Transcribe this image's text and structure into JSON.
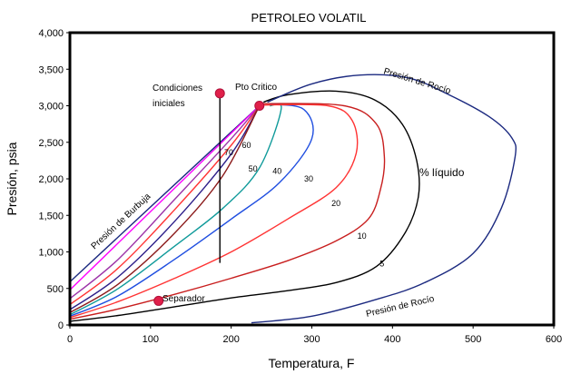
{
  "chart_data": {
    "type": "line",
    "title": "PETROLEO VOLATIL",
    "xlabel": "Temperatura, F",
    "ylabel": "Presión, psia",
    "xlim": [
      0,
      600
    ],
    "ylim": [
      0,
      4000
    ],
    "x_ticks": [
      0,
      100,
      200,
      300,
      400,
      500,
      600
    ],
    "y_ticks": [
      0,
      500,
      1000,
      1500,
      2000,
      2500,
      3000,
      3500,
      4000
    ],
    "x_tick_labels": [
      "0",
      "100",
      "200",
      "300",
      "400",
      "500",
      "600"
    ],
    "y_tick_labels": [
      "0",
      "500",
      "1,000",
      "1,500",
      "2,000",
      "2,500",
      "3,000",
      "3,500",
      "4,000"
    ],
    "grid": false,
    "series": [
      {
        "color": "#1c2a80",
        "x": [
          0,
          235
        ],
        "y": [
          590,
          3000
        ]
      },
      {
        "color": "#ff00ff",
        "x": [
          0,
          235
        ],
        "y": [
          480,
          3000
        ]
      },
      {
        "color": "#9c33a8",
        "x": [
          0,
          60,
          130,
          200,
          235
        ],
        "y": [
          360,
          900,
          1720,
          2550,
          3000
        ]
      },
      {
        "color": "#ff3333",
        "x": [
          0,
          60,
          130,
          200,
          235
        ],
        "y": [
          280,
          780,
          1580,
          2460,
          3000
        ]
      },
      {
        "color": "#2d1f8a",
        "x": [
          0,
          60,
          130,
          200,
          235
        ],
        "y": [
          210,
          660,
          1420,
          2340,
          3000
        ]
      },
      {
        "color": "#8b1a1a",
        "x": [
          0,
          60,
          130,
          190,
          235
        ],
        "y": [
          170,
          560,
          1260,
          2050,
          3000
        ]
      },
      {
        "color": "#0f9a9a",
        "x": [
          0,
          60,
          130,
          190,
          235,
          262,
          248
        ],
        "y": [
          140,
          500,
          1080,
          1600,
          2150,
          2950,
          3000
        ]
      },
      {
        "color": "#1f4ee0",
        "x": [
          0,
          60,
          130,
          200,
          260,
          300,
          290,
          248
        ],
        "y": [
          120,
          400,
          900,
          1450,
          1950,
          2550,
          2950,
          3020
        ]
      },
      {
        "color": "#ff3333",
        "x": [
          0,
          60,
          130,
          200,
          270,
          330,
          355,
          350,
          320,
          240
        ],
        "y": [
          100,
          320,
          640,
          1000,
          1450,
          1880,
          2350,
          2800,
          3000,
          3010
        ]
      },
      {
        "color": "#c81e1e",
        "x": [
          0,
          60,
          130,
          200,
          270,
          330,
          370,
          385,
          390,
          380,
          340,
          240
        ],
        "y": [
          80,
          220,
          420,
          640,
          880,
          1150,
          1450,
          1850,
          2300,
          2750,
          3000,
          3030
        ]
      },
      {
        "color": "#000000",
        "x": [
          0,
          60,
          130,
          200,
          270,
          330,
          380,
          415,
          432,
          430,
          412,
          378,
          330,
          270,
          240
        ],
        "y": [
          50,
          130,
          250,
          370,
          470,
          580,
          800,
          1250,
          1750,
          2250,
          2750,
          3080,
          3200,
          3150,
          3050
        ]
      },
      {
        "color": "#1c2a80",
        "x": [
          225,
          300,
          380,
          440,
          500,
          535,
          552,
          548,
          520,
          470,
          420,
          360,
          300,
          245
        ],
        "y": [
          30,
          120,
          350,
          580,
          980,
          1600,
          2300,
          2560,
          2850,
          3150,
          3380,
          3420,
          3300,
          3050
        ]
      }
    ],
    "points": [
      {
        "label": "Condiciones iniciales",
        "x": 186,
        "y": 3170
      },
      {
        "label": "Pto Critico",
        "x": 235,
        "y": 3000
      },
      {
        "label": "Separador",
        "x": 110,
        "y": 330
      }
    ],
    "vertical_line": {
      "x": 186,
      "y_from": 3170,
      "y_to": 850
    },
    "annotations": {
      "condiciones": [
        "Condiciones",
        "iniciales"
      ],
      "pto_critico": "Pto Critico",
      "separador": "Separador",
      "burbuja": "Presión de Burbuja",
      "rocio_top": "Presión de Rocío",
      "rocio_bottom": "Presión de Rocío",
      "liquido": "% líquido"
    },
    "curve_labels": [
      {
        "text": "70",
        "x": 197,
        "y": 2320
      },
      {
        "text": "60",
        "x": 219,
        "y": 2420
      },
      {
        "text": "50",
        "x": 227,
        "y": 2100
      },
      {
        "text": "40",
        "x": 257,
        "y": 2070
      },
      {
        "text": "30",
        "x": 296,
        "y": 1960
      },
      {
        "text": "20",
        "x": 330,
        "y": 1630
      },
      {
        "text": "10",
        "x": 362,
        "y": 1180
      },
      {
        "text": "5",
        "x": 387,
        "y": 800
      }
    ]
  }
}
